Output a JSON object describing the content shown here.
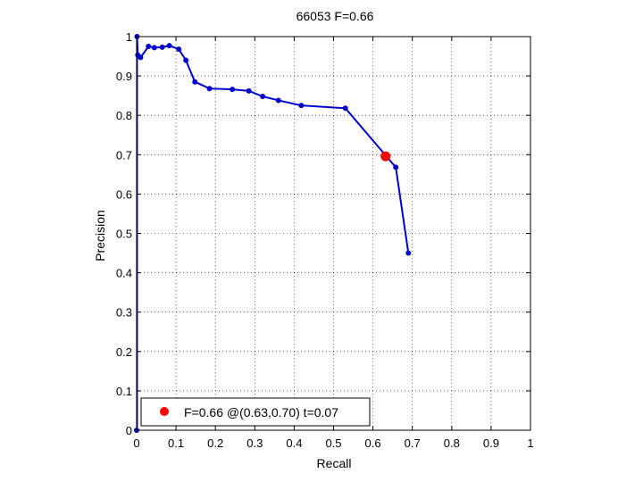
{
  "chart_data": {
    "type": "line",
    "title": "66053 F=0.66",
    "xlabel": "Recall",
    "ylabel": "Precision",
    "xlim": [
      0,
      1
    ],
    "ylim": [
      0,
      1
    ],
    "grid": true,
    "grid_style": "dotted",
    "xticks": [
      0,
      0.1,
      0.2,
      0.3,
      0.4,
      0.5,
      0.6,
      0.7,
      0.8,
      0.9,
      1
    ],
    "xtick_labels": [
      "0",
      "0.1",
      "0.2",
      "0.3",
      "0.4",
      "0.5",
      "0.6",
      "0.7",
      "0.8",
      "0.9",
      "1"
    ],
    "yticks": [
      0,
      0.1,
      0.2,
      0.3,
      0.4,
      0.5,
      0.6,
      0.7,
      0.8,
      0.9,
      1
    ],
    "ytick_labels": [
      "0",
      "0.1",
      "0.2",
      "0.3",
      "0.4",
      "0.5",
      "0.6",
      "0.7",
      "0.8",
      "0.9",
      "1"
    ],
    "series": [
      {
        "color": "#0000cc",
        "marker": "dot",
        "x": [
          0.001,
          0.003,
          0.01,
          0.03,
          0.045,
          0.065,
          0.083,
          0.107,
          0.125,
          0.148,
          0.185,
          0.243,
          0.285,
          0.32,
          0.36,
          0.418,
          0.53,
          0.658,
          0.69
        ],
        "y": [
          1.0,
          0.953,
          0.947,
          0.975,
          0.972,
          0.973,
          0.977,
          0.968,
          0.94,
          0.885,
          0.868,
          0.866,
          0.862,
          0.848,
          0.838,
          0.825,
          0.818,
          0.668,
          0.45
        ]
      }
    ],
    "vertical_segment": {
      "x": 0.001,
      "y": [
        0,
        1.0
      ],
      "color": "#0000cc"
    },
    "origin_point": {
      "x": 0,
      "y": 0
    },
    "highlight_point": {
      "x": 0.632,
      "y": 0.696,
      "color": "#ff0000"
    },
    "legend": {
      "position": "bottom-left",
      "text": "F=0.66 @(0.63,0.70) t=0.07",
      "marker_color": "#ff0000"
    }
  }
}
